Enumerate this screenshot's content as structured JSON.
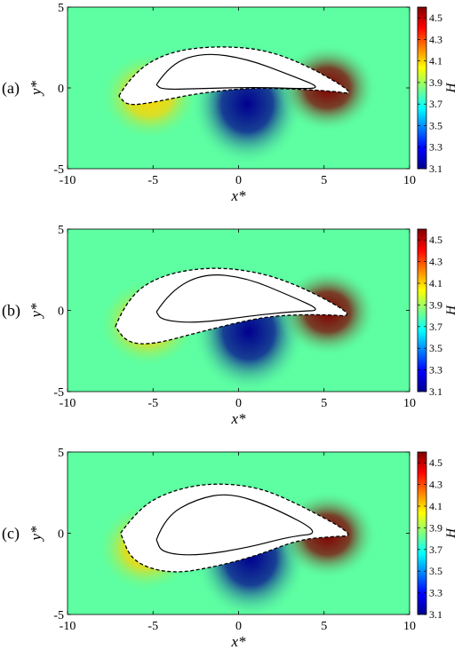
{
  "chart_data": [
    {
      "type": "heatmap",
      "panel_label": "(a)",
      "xlabel": "x*",
      "ylabel": "y*",
      "xlim": [
        -10,
        10
      ],
      "ylim": [
        -5,
        5
      ],
      "x_ticks": [
        "-10",
        "-5",
        "0",
        "5",
        "10"
      ],
      "y_ticks": [
        "5",
        "0",
        "-5"
      ],
      "colorbar_label": "H",
      "colorbar_range": [
        3.1,
        4.6
      ],
      "colorbar_ticks": [
        "4.5",
        "4.3",
        "4.1",
        "3.9",
        "3.7",
        "3.5",
        "3.3",
        "3.1"
      ],
      "background_value": 3.8,
      "extrema": [
        {
          "x": -5.2,
          "y": -0.5,
          "value": 4.1
        },
        {
          "x": 0.5,
          "y": -1.0,
          "value": 3.1
        },
        {
          "x": 5.2,
          "y": 0.0,
          "value": 4.6
        }
      ],
      "outer_contour": [
        [
          -7,
          -0.5
        ],
        [
          -6.2,
          0.9
        ],
        [
          -4.2,
          2.2
        ],
        [
          -1.5,
          2.6
        ],
        [
          1.5,
          2.4
        ],
        [
          4.2,
          1.3
        ],
        [
          6.9,
          -0.4
        ],
        [
          5.5,
          -0.2
        ],
        [
          3.0,
          -0.05
        ],
        [
          0.5,
          0.0
        ],
        [
          -2.5,
          -0.35
        ],
        [
          -5,
          -0.9
        ],
        [
          -6.5,
          -1.1
        ],
        [
          -7,
          -0.5
        ]
      ],
      "inner_contour": [
        [
          -4.8,
          0.2
        ],
        [
          -4,
          1.5
        ],
        [
          -2,
          2.2
        ],
        [
          0.5,
          1.8
        ],
        [
          3.0,
          0.8
        ],
        [
          4.9,
          0.0
        ],
        [
          3.5,
          -0.05
        ],
        [
          1.0,
          0.05
        ],
        [
          -2.5,
          -0.05
        ],
        [
          -4.5,
          -0.1
        ],
        [
          -4.8,
          0.2
        ]
      ]
    },
    {
      "type": "heatmap",
      "panel_label": "(b)",
      "xlabel": "x*",
      "ylabel": "y*",
      "xlim": [
        -10,
        10
      ],
      "ylim": [
        -5,
        5
      ],
      "x_ticks": [
        "-10",
        "-5",
        "0",
        "5",
        "10"
      ],
      "y_ticks": [
        "5",
        "0",
        "-5"
      ],
      "colorbar_label": "H",
      "colorbar_range": [
        3.1,
        4.6
      ],
      "colorbar_ticks": [
        "4.5",
        "4.3",
        "4.1",
        "3.9",
        "3.7",
        "3.5",
        "3.3",
        "3.1"
      ],
      "background_value": 3.8,
      "extrema": [
        {
          "x": -5.3,
          "y": -0.8,
          "value": 4.1
        },
        {
          "x": 0.6,
          "y": -1.3,
          "value": 3.1
        },
        {
          "x": 5.2,
          "y": -0.1,
          "value": 4.6
        }
      ],
      "outer_contour": [
        [
          -7.2,
          -1
        ],
        [
          -6.5,
          0.8
        ],
        [
          -4.5,
          2.2
        ],
        [
          -1.5,
          2.7
        ],
        [
          1.5,
          2.3
        ],
        [
          4.2,
          1.2
        ],
        [
          6.9,
          -0.4
        ],
        [
          5.0,
          -0.25
        ],
        [
          2.5,
          -0.3
        ],
        [
          0.5,
          -0.6
        ],
        [
          -2.5,
          -1.4
        ],
        [
          -5,
          -2.1
        ],
        [
          -6.5,
          -2.0
        ],
        [
          -7.2,
          -1
        ]
      ],
      "inner_contour": [
        [
          -4.8,
          -0.1
        ],
        [
          -4,
          1.2
        ],
        [
          -2,
          2.3
        ],
        [
          0.5,
          2.0
        ],
        [
          3.0,
          0.9
        ],
        [
          4.9,
          0.0
        ],
        [
          3.5,
          -0.05
        ],
        [
          1.0,
          -0.3
        ],
        [
          -2.5,
          -0.8
        ],
        [
          -4.5,
          -0.6
        ],
        [
          -4.8,
          -0.1
        ]
      ]
    },
    {
      "type": "heatmap",
      "panel_label": "(c)",
      "xlabel": "x*",
      "ylabel": "y*",
      "xlim": [
        -10,
        10
      ],
      "ylim": [
        -5,
        5
      ],
      "x_ticks": [
        "-10",
        "-5",
        "0",
        "5",
        "10"
      ],
      "y_ticks": [
        "5",
        "0",
        "-5"
      ],
      "colorbar_label": "H",
      "colorbar_range": [
        3.1,
        4.6
      ],
      "colorbar_ticks": [
        "4.5",
        "4.3",
        "4.1",
        "3.9",
        "3.7",
        "3.5",
        "3.3",
        "3.1"
      ],
      "background_value": 3.8,
      "extrema": [
        {
          "x": -5.4,
          "y": -0.9,
          "value": 4.1
        },
        {
          "x": 0.7,
          "y": -1.5,
          "value": 3.1
        },
        {
          "x": 5.2,
          "y": -0.1,
          "value": 4.6
        }
      ],
      "outer_contour": [
        [
          -6.9,
          0.0
        ],
        [
          -6.0,
          1.3
        ],
        [
          -4.5,
          2.4
        ],
        [
          -2,
          3.1
        ],
        [
          1.0,
          2.9
        ],
        [
          3.5,
          1.8
        ],
        [
          6.9,
          -0.15
        ],
        [
          5.5,
          -0.2
        ],
        [
          3.5,
          -0.4
        ],
        [
          1.0,
          -1.4
        ],
        [
          -1.5,
          -2.1
        ],
        [
          -4,
          -2.5
        ],
        [
          -6.2,
          -1.8
        ],
        [
          -6.9,
          0.0
        ]
      ],
      "inner_contour": [
        [
          -4.8,
          -0.4
        ],
        [
          -4.3,
          1.0
        ],
        [
          -2.5,
          2.1
        ],
        [
          -0.5,
          2.5
        ],
        [
          2.0,
          1.6
        ],
        [
          4.9,
          0.0
        ],
        [
          3.0,
          -0.2
        ],
        [
          0.5,
          -0.9
        ],
        [
          -2.5,
          -1.4
        ],
        [
          -4.5,
          -1.2
        ],
        [
          -4.8,
          -0.4
        ]
      ]
    }
  ]
}
